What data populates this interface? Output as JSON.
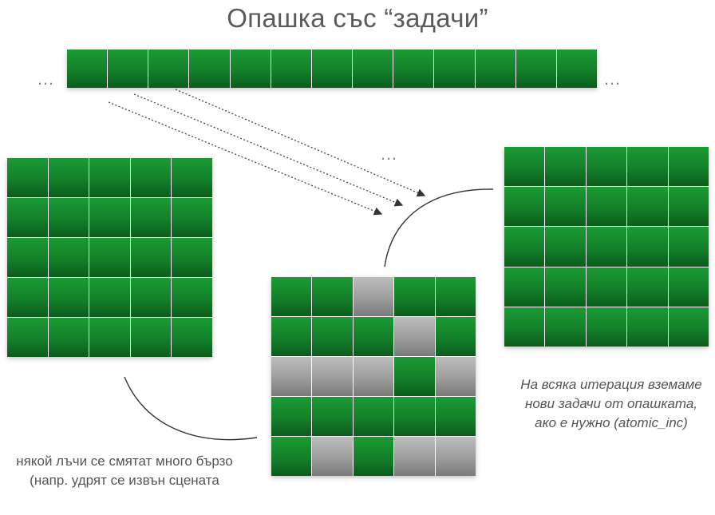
{
  "title": "Опашка със “задачи”",
  "ellipsis_left": "…",
  "ellipsis_right": "…",
  "ellipsis_middle": "…",
  "note_left": "някой лъчи се смятат много бързо (напр. удрят се извън сцената",
  "note_right": "На всяка итерация вземаме нови задачи от опашката, ако е нужно (atomic_inc)",
  "colors": {
    "task_pending": "#13802a",
    "task_done": "#9c9c9c"
  },
  "queue": {
    "cells": [
      "g",
      "g",
      "g",
      "g",
      "g",
      "g",
      "g",
      "g",
      "g",
      "g",
      "g",
      "g",
      "g"
    ]
  },
  "left_grid": {
    "rows": [
      [
        "g",
        "g",
        "g",
        "g",
        "g"
      ],
      [
        "g",
        "g",
        "g",
        "g",
        "g"
      ],
      [
        "g",
        "g",
        "g",
        "g",
        "g"
      ],
      [
        "g",
        "g",
        "g",
        "g",
        "g"
      ],
      [
        "g",
        "g",
        "g",
        "g",
        "g"
      ]
    ]
  },
  "middle_grid": {
    "rows": [
      [
        "g",
        "g",
        "x",
        "g",
        "g"
      ],
      [
        "g",
        "g",
        "g",
        "x",
        "g"
      ],
      [
        "x",
        "x",
        "x",
        "g",
        "x"
      ],
      [
        "g",
        "g",
        "g",
        "g",
        "g"
      ],
      [
        "g",
        "x",
        "g",
        "x",
        "x"
      ]
    ]
  },
  "right_grid": {
    "rows": [
      [
        "g",
        "g",
        "g",
        "g",
        "g"
      ],
      [
        "g",
        "g",
        "g",
        "g",
        "g"
      ],
      [
        "g",
        "g",
        "g",
        "g",
        "g"
      ],
      [
        "g",
        "g",
        "g",
        "g",
        "g"
      ],
      [
        "g",
        "g",
        "g",
        "g",
        "g"
      ]
    ]
  }
}
